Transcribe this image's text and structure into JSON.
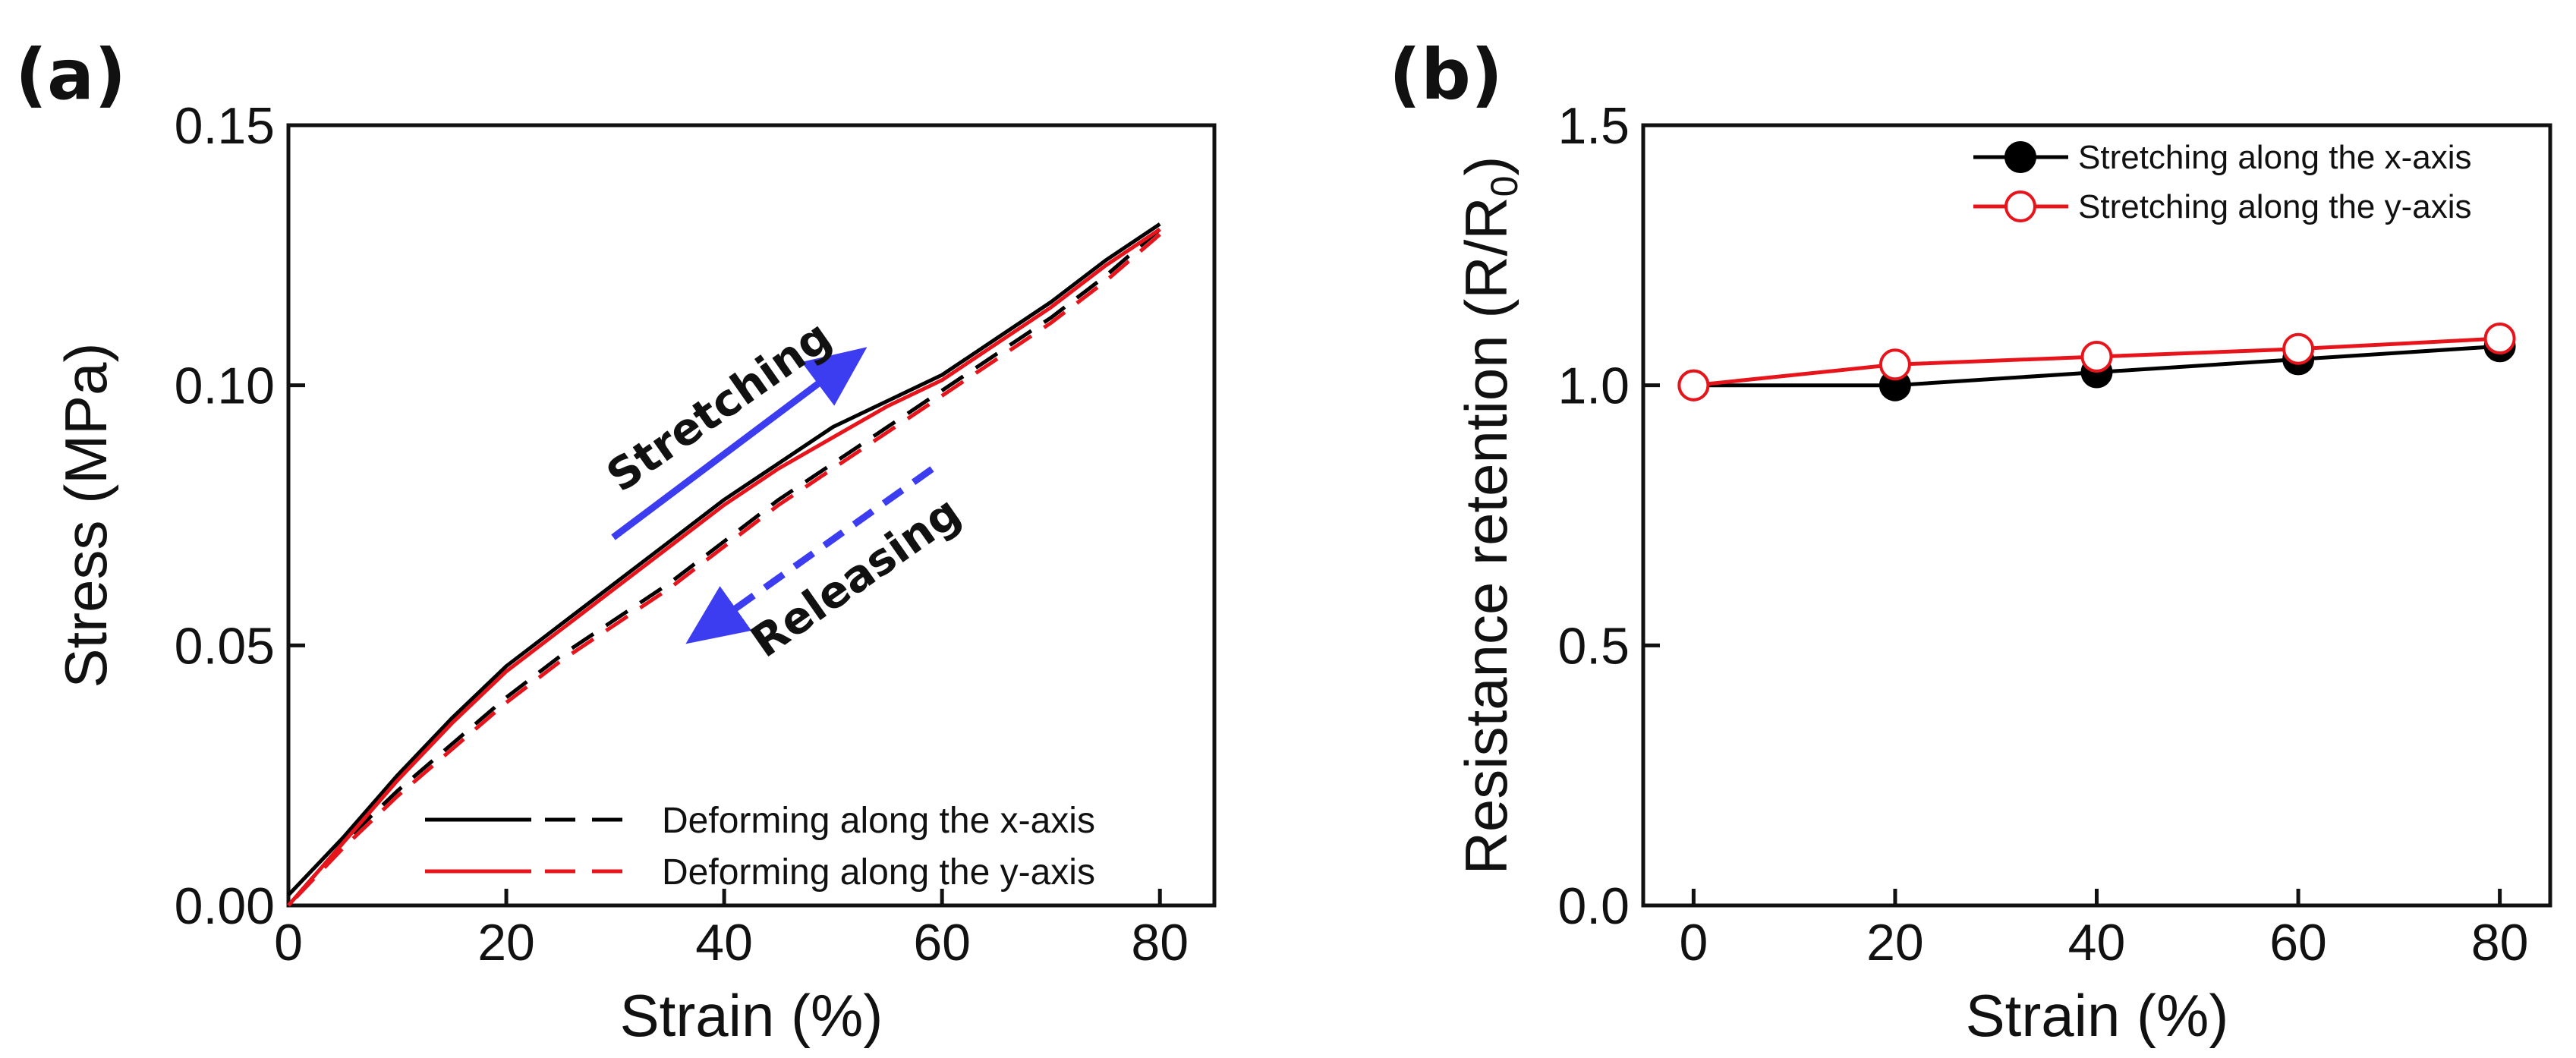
{
  "panels": {
    "a": {
      "label": "(a)",
      "xlabel": "Strain (%)",
      "ylabel": "Stress (MPa)",
      "xticks": [
        0,
        20,
        40,
        60,
        80
      ],
      "yticks": [
        "0.00",
        "0.05",
        "0.10",
        "0.15"
      ],
      "legend": [
        "Deforming along the x-axis",
        "Deforming along the y-axis"
      ],
      "annotations": {
        "stretching": "Stretching",
        "releasing": "Releasing"
      }
    },
    "b": {
      "label": "(b)",
      "xlabel": "Strain (%)",
      "ylabel_main": "Resistance retention (R/R",
      "ylabel_sub": "0",
      "ylabel_end": ")",
      "xticks": [
        0,
        20,
        40,
        60,
        80
      ],
      "yticks": [
        "0.0",
        "0.5",
        "1.0",
        "1.5"
      ],
      "legend": [
        "Stretching along the x-axis",
        "Stretching along the y-axis"
      ]
    }
  },
  "colors": {
    "black": "#000000",
    "red": "#e8141b",
    "arrow": "#3c3cf0"
  },
  "chart_data": [
    {
      "type": "line",
      "title": "",
      "xlabel": "Strain (%)",
      "ylabel": "Stress (MPa)",
      "xlim": [
        0,
        85
      ],
      "ylim": [
        0,
        0.15
      ],
      "series": [
        {
          "name": "Deforming along the x-axis (stretching)",
          "style": "solid",
          "color": "#000000",
          "x": [
            0,
            5,
            10,
            15,
            20,
            25,
            30,
            35,
            40,
            45,
            50,
            55,
            60,
            65,
            70,
            75,
            80
          ],
          "y": [
            0.002,
            0.013,
            0.025,
            0.036,
            0.046,
            0.054,
            0.062,
            0.07,
            0.078,
            0.085,
            0.092,
            0.097,
            0.102,
            0.109,
            0.116,
            0.124,
            0.131
          ]
        },
        {
          "name": "Deforming along the x-axis (releasing)",
          "style": "dashed",
          "color": "#000000",
          "x": [
            80,
            75,
            70,
            65,
            60,
            55,
            50,
            45,
            40,
            35,
            30,
            25,
            20,
            15,
            10,
            5,
            0
          ],
          "y": [
            0.13,
            0.121,
            0.113,
            0.106,
            0.099,
            0.092,
            0.085,
            0.078,
            0.07,
            0.062,
            0.055,
            0.048,
            0.04,
            0.031,
            0.022,
            0.012,
            0.0
          ]
        },
        {
          "name": "Deforming along the y-axis (stretching)",
          "style": "solid",
          "color": "#e8141b",
          "x": [
            0,
            5,
            10,
            15,
            20,
            25,
            30,
            35,
            40,
            45,
            50,
            55,
            60,
            65,
            70,
            75,
            80
          ],
          "y": [
            0.0,
            0.012,
            0.024,
            0.035,
            0.045,
            0.053,
            0.061,
            0.069,
            0.077,
            0.084,
            0.09,
            0.096,
            0.101,
            0.108,
            0.115,
            0.123,
            0.13
          ]
        },
        {
          "name": "Deforming along the y-axis (releasing)",
          "style": "dashed",
          "color": "#e8141b",
          "x": [
            80,
            75,
            70,
            65,
            60,
            55,
            50,
            45,
            40,
            35,
            30,
            25,
            20,
            15,
            10,
            5,
            0
          ],
          "y": [
            0.129,
            0.12,
            0.112,
            0.105,
            0.098,
            0.091,
            0.084,
            0.077,
            0.069,
            0.061,
            0.054,
            0.047,
            0.039,
            0.03,
            0.021,
            0.011,
            0.0
          ]
        }
      ],
      "annotations": [
        "Stretching",
        "Releasing"
      ]
    },
    {
      "type": "line",
      "title": "",
      "xlabel": "Strain (%)",
      "ylabel": "Resistance retention (R/R0)",
      "xlim": [
        -5,
        85
      ],
      "ylim": [
        0,
        1.5
      ],
      "categories": [
        0,
        20,
        40,
        60,
        80
      ],
      "series": [
        {
          "name": "Stretching along the x-axis",
          "marker": "filled-circle",
          "color": "#000000",
          "x": [
            0,
            20,
            40,
            60,
            80
          ],
          "y": [
            1.0,
            1.0,
            1.025,
            1.05,
            1.075
          ]
        },
        {
          "name": "Stretching along the y-axis",
          "marker": "open-circle",
          "color": "#e8141b",
          "x": [
            0,
            20,
            40,
            60,
            80
          ],
          "y": [
            1.0,
            1.04,
            1.055,
            1.07,
            1.09
          ]
        }
      ]
    }
  ]
}
